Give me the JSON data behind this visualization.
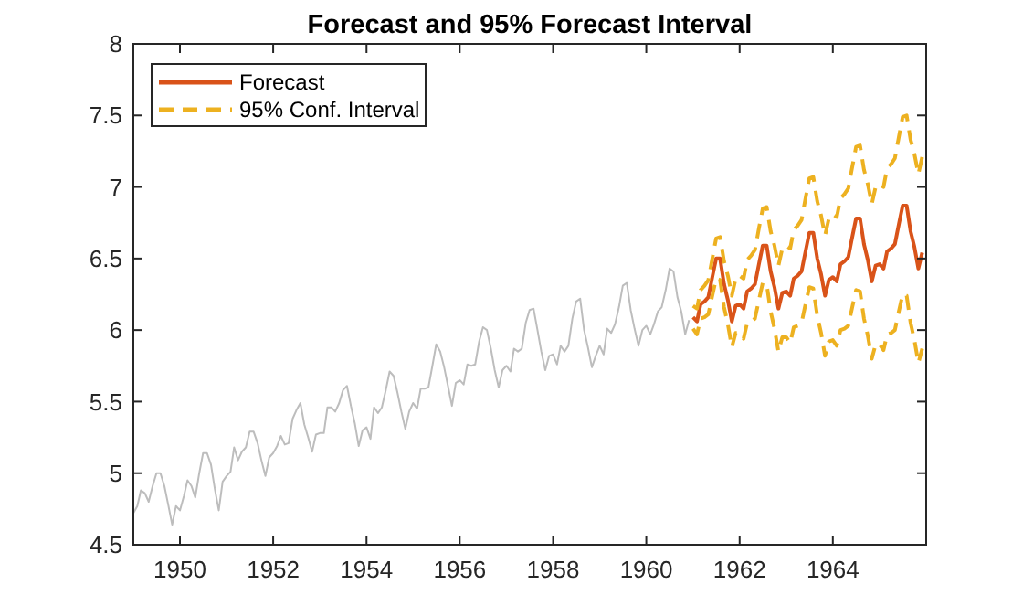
{
  "chart_data": {
    "type": "line",
    "title": "Forecast and 95% Forecast Interval",
    "xlim": [
      "1949-01",
      "1966-01"
    ],
    "xticks": [
      "1950",
      "1952",
      "1954",
      "1956",
      "1958",
      "1960",
      "1962",
      "1964"
    ],
    "ylim": [
      4.5,
      8
    ],
    "yticks": [
      4.5,
      5,
      5.5,
      6,
      6.5,
      7,
      7.5,
      8
    ],
    "legend": "top left",
    "series": [
      {
        "color": "#bdbdbd",
        "x": [
          "1949-01",
          "1949-02",
          "1949-03",
          "1949-04",
          "1949-05",
          "1949-06",
          "1949-07",
          "1949-08",
          "1949-09",
          "1949-10",
          "1949-11",
          "1949-12",
          "1950-01",
          "1950-02",
          "1950-03",
          "1950-04",
          "1950-05",
          "1950-06",
          "1950-07",
          "1950-08",
          "1950-09",
          "1950-10",
          "1950-11",
          "1950-12",
          "1951-01",
          "1951-02",
          "1951-03",
          "1951-04",
          "1951-05",
          "1951-06",
          "1951-07",
          "1951-08",
          "1951-09",
          "1951-10",
          "1951-11",
          "1951-12",
          "1952-01",
          "1952-02",
          "1952-03",
          "1952-04",
          "1952-05",
          "1952-06",
          "1952-07",
          "1952-08",
          "1952-09",
          "1952-10",
          "1952-11",
          "1952-12",
          "1953-01",
          "1953-02",
          "1953-03",
          "1953-04",
          "1953-05",
          "1953-06",
          "1953-07",
          "1953-08",
          "1953-09",
          "1953-10",
          "1953-11",
          "1953-12",
          "1954-01",
          "1954-02",
          "1954-03",
          "1954-04",
          "1954-05",
          "1954-06",
          "1954-07",
          "1954-08",
          "1954-09",
          "1954-10",
          "1954-11",
          "1954-12",
          "1955-01",
          "1955-02",
          "1955-03",
          "1955-04",
          "1955-05",
          "1955-06",
          "1955-07",
          "1955-08",
          "1955-09",
          "1955-10",
          "1955-11",
          "1955-12",
          "1956-01",
          "1956-02",
          "1956-03",
          "1956-04",
          "1956-05",
          "1956-06",
          "1956-07",
          "1956-08",
          "1956-09",
          "1956-10",
          "1956-11",
          "1956-12",
          "1957-01",
          "1957-02",
          "1957-03",
          "1957-04",
          "1957-05",
          "1957-06",
          "1957-07",
          "1957-08",
          "1957-09",
          "1957-10",
          "1957-11",
          "1957-12",
          "1958-01",
          "1958-02",
          "1958-03",
          "1958-04",
          "1958-05",
          "1958-06",
          "1958-07",
          "1958-08",
          "1958-09",
          "1958-10",
          "1958-11",
          "1958-12",
          "1959-01",
          "1959-02",
          "1959-03",
          "1959-04",
          "1959-05",
          "1959-06",
          "1959-07",
          "1959-08",
          "1959-09",
          "1959-10",
          "1959-11",
          "1959-12",
          "1960-01",
          "1960-02",
          "1960-03",
          "1960-04",
          "1960-05",
          "1960-06",
          "1960-07",
          "1960-08",
          "1960-09",
          "1960-10",
          "1960-11",
          "1960-12"
        ],
        "values": [
          4.72,
          4.77,
          4.88,
          4.86,
          4.8,
          4.91,
          5.0,
          5.0,
          4.91,
          4.78,
          4.64,
          4.77,
          4.74,
          4.84,
          4.95,
          4.91,
          4.83,
          5.0,
          5.14,
          5.14,
          5.06,
          4.89,
          4.74,
          4.94,
          4.98,
          5.01,
          5.18,
          5.09,
          5.15,
          5.18,
          5.29,
          5.29,
          5.21,
          5.09,
          4.98,
          5.11,
          5.14,
          5.19,
          5.26,
          5.2,
          5.21,
          5.38,
          5.44,
          5.49,
          5.34,
          5.25,
          5.15,
          5.27,
          5.28,
          5.28,
          5.46,
          5.46,
          5.43,
          5.49,
          5.58,
          5.61,
          5.47,
          5.35,
          5.19,
          5.3,
          5.32,
          5.24,
          5.46,
          5.42,
          5.46,
          5.58,
          5.71,
          5.68,
          5.56,
          5.43,
          5.31,
          5.43,
          5.49,
          5.45,
          5.59,
          5.59,
          5.6,
          5.75,
          5.9,
          5.85,
          5.74,
          5.61,
          5.47,
          5.63,
          5.65,
          5.62,
          5.76,
          5.75,
          5.76,
          5.92,
          6.02,
          6.0,
          5.87,
          5.72,
          5.6,
          5.72,
          5.75,
          5.71,
          5.87,
          5.85,
          5.87,
          6.05,
          6.14,
          6.15,
          6.0,
          5.85,
          5.72,
          5.82,
          5.83,
          5.76,
          5.89,
          5.85,
          5.89,
          6.08,
          6.2,
          6.22,
          6.0,
          5.88,
          5.74,
          5.82,
          5.89,
          5.83,
          6.01,
          5.98,
          6.04,
          6.16,
          6.31,
          6.33,
          6.14,
          6.01,
          5.89,
          6.0,
          6.03,
          5.97,
          6.04,
          6.13,
          6.16,
          6.28,
          6.43,
          6.41,
          6.23,
          6.13,
          5.97,
          6.07
        ]
      },
      {
        "name": "Forecast",
        "color": "#d95319",
        "x": [
          "1961-01",
          "1961-02",
          "1961-03",
          "1961-04",
          "1961-05",
          "1961-06",
          "1961-07",
          "1961-08",
          "1961-09",
          "1961-10",
          "1961-11",
          "1961-12",
          "1962-01",
          "1962-02",
          "1962-03",
          "1962-04",
          "1962-05",
          "1962-06",
          "1962-07",
          "1962-08",
          "1962-09",
          "1962-10",
          "1962-11",
          "1962-12",
          "1963-01",
          "1963-02",
          "1963-03",
          "1963-04",
          "1963-05",
          "1963-06",
          "1963-07",
          "1963-08",
          "1963-09",
          "1963-10",
          "1963-11",
          "1963-12",
          "1964-01",
          "1964-02",
          "1964-03",
          "1964-04",
          "1964-05",
          "1964-06",
          "1964-07",
          "1964-08",
          "1964-09",
          "1964-10",
          "1964-11",
          "1964-12",
          "1965-01",
          "1965-02",
          "1965-03",
          "1965-04",
          "1965-05",
          "1965-06",
          "1965-07",
          "1965-08",
          "1965-09",
          "1965-10",
          "1965-11",
          "1965-12"
        ],
        "values": [
          6.09,
          6.06,
          6.18,
          6.2,
          6.23,
          6.37,
          6.5,
          6.5,
          6.32,
          6.21,
          6.06,
          6.17,
          6.18,
          6.15,
          6.27,
          6.29,
          6.32,
          6.46,
          6.59,
          6.59,
          6.41,
          6.3,
          6.15,
          6.26,
          6.27,
          6.24,
          6.36,
          6.38,
          6.41,
          6.55,
          6.68,
          6.68,
          6.5,
          6.39,
          6.24,
          6.35,
          6.37,
          6.34,
          6.46,
          6.48,
          6.51,
          6.65,
          6.78,
          6.78,
          6.6,
          6.49,
          6.34,
          6.45,
          6.46,
          6.43,
          6.55,
          6.57,
          6.6,
          6.74,
          6.87,
          6.87,
          6.69,
          6.58,
          6.43,
          6.54
        ]
      },
      {
        "name": "95% Conf. Interval",
        "color": "#edb120",
        "line_style": "dashed",
        "x": [
          "1961-01",
          "1961-02",
          "1961-03",
          "1961-04",
          "1961-05",
          "1961-06",
          "1961-07",
          "1961-08",
          "1961-09",
          "1961-10",
          "1961-11",
          "1961-12",
          "1962-01",
          "1962-02",
          "1962-03",
          "1962-04",
          "1962-05",
          "1962-06",
          "1962-07",
          "1962-08",
          "1962-09",
          "1962-10",
          "1962-11",
          "1962-12",
          "1963-01",
          "1963-02",
          "1963-03",
          "1963-04",
          "1963-05",
          "1963-06",
          "1963-07",
          "1963-08",
          "1963-09",
          "1963-10",
          "1963-11",
          "1963-12",
          "1964-01",
          "1964-02",
          "1964-03",
          "1964-04",
          "1964-05",
          "1964-06",
          "1964-07",
          "1964-08",
          "1964-09",
          "1964-10",
          "1964-11",
          "1964-12",
          "1965-01",
          "1965-02",
          "1965-03",
          "1965-04",
          "1965-05",
          "1965-06",
          "1965-07",
          "1965-08",
          "1965-09",
          "1965-10",
          "1965-11",
          "1965-12"
        ],
        "values": [
          6.17,
          6.15,
          6.28,
          6.31,
          6.35,
          6.5,
          6.64,
          6.65,
          6.48,
          6.38,
          6.24,
          6.36,
          6.38,
          6.36,
          6.49,
          6.52,
          6.56,
          6.71,
          6.85,
          6.86,
          6.69,
          6.59,
          6.45,
          6.57,
          6.59,
          6.57,
          6.7,
          6.73,
          6.77,
          6.92,
          7.06,
          7.07,
          6.9,
          6.8,
          6.66,
          6.78,
          6.81,
          6.79,
          6.92,
          6.95,
          6.99,
          7.14,
          7.28,
          7.29,
          7.12,
          7.02,
          6.88,
          7.0,
          7.02,
          7.0,
          7.13,
          7.16,
          7.2,
          7.35,
          7.49,
          7.5,
          7.33,
          7.23,
          7.09,
          7.21
        ]
      },
      {
        "color": "#edb120",
        "line_style": "dashed",
        "x": [
          "1961-01",
          "1961-02",
          "1961-03",
          "1961-04",
          "1961-05",
          "1961-06",
          "1961-07",
          "1961-08",
          "1961-09",
          "1961-10",
          "1961-11",
          "1961-12",
          "1962-01",
          "1962-02",
          "1962-03",
          "1962-04",
          "1962-05",
          "1962-06",
          "1962-07",
          "1962-08",
          "1962-09",
          "1962-10",
          "1962-11",
          "1962-12",
          "1963-01",
          "1963-02",
          "1963-03",
          "1963-04",
          "1963-05",
          "1963-06",
          "1963-07",
          "1963-08",
          "1963-09",
          "1963-10",
          "1963-11",
          "1963-12",
          "1964-01",
          "1964-02",
          "1964-03",
          "1964-04",
          "1964-05",
          "1964-06",
          "1964-07",
          "1964-08",
          "1964-09",
          "1964-10",
          "1964-11",
          "1964-12",
          "1965-01",
          "1965-02",
          "1965-03",
          "1965-04",
          "1965-05",
          "1965-06",
          "1965-07",
          "1965-08",
          "1965-09",
          "1965-10",
          "1965-11",
          "1965-12"
        ],
        "values": [
          6.01,
          5.97,
          6.08,
          6.09,
          6.11,
          6.24,
          6.36,
          6.35,
          6.16,
          6.04,
          5.88,
          5.98,
          5.98,
          5.94,
          6.05,
          6.06,
          6.08,
          6.21,
          6.33,
          6.32,
          6.13,
          6.01,
          5.85,
          5.95,
          5.95,
          5.91,
          6.02,
          6.03,
          6.05,
          6.18,
          6.3,
          6.29,
          6.1,
          5.98,
          5.82,
          5.92,
          5.93,
          5.89,
          6.0,
          6.01,
          6.03,
          6.16,
          6.28,
          6.27,
          6.08,
          5.96,
          5.8,
          5.9,
          5.9,
          5.86,
          5.97,
          5.98,
          6.0,
          6.13,
          6.25,
          6.24,
          6.05,
          5.93,
          5.77,
          5.87
        ]
      }
    ]
  }
}
